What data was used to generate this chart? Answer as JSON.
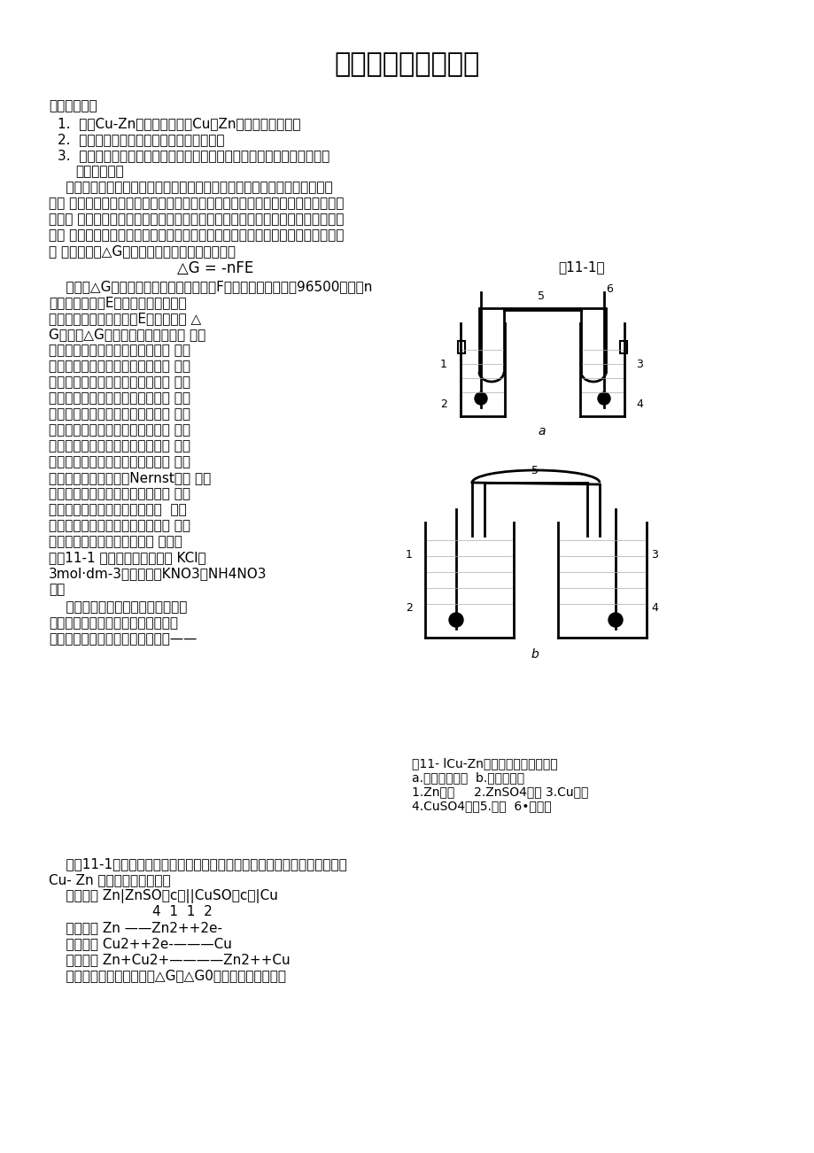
{
  "title": "原电池电动势的测定",
  "bg_color": "#ffffff",
  "text_color": "#000000",
  "title_fontsize": 22,
  "body_fontsize": 11,
  "para1_lines": [
    "    电池由正、负两极组成，在放电过程中，正极（阴极）发生还原反应，负极",
    "（阳 极）发生氧化反应，电池内部可能发生其他反应（如离子迁移等），电池反应",
    "是电池 中所有反应的总和。电池除可以用来作为电源外，还可用来研究构成电池的",
    "化学 反应的热力学性质。从化学热力学知道，在恒温、恒压、可逆条件下，系统的",
    "吉 布斯函数变△G与电池的电动势存在下列关系："
  ],
  "formula_left": "△G = -nFE",
  "formula_right": "（11-1）",
  "lines_after_formula": [
    "    式中：△G是电池反应的吉布斯函数变，F是法拉第常数（等于96500库仑，n",
    "是得失电子数，E是电池的电动势。可"
  ],
  "left_col_lines": [
    "见，只要能测出该电池的E，便可求出 △",
    "G，通过△G又可求出其他热力学函 数，",
    "但必须注意，只有恒温、恒压、可 逆条",
    "件下，上式才能成立。这就首先要 求电",
    "池反应本身是可逆的，即要求电极 反应",
    "必须可逆，且不存在任何不可逆的 液体",
    "接界电势。另外，电池还必须在可 逆的",
    "情况下工作，即放电和充电过程都 必须",
    "在准平衡状态下进行，此时只有无 限小",
    "的电流通过电池。只有这样，测得 的电",
    "动势才能与理论值（用Nernst方程 计算",
    "值）相吻合。用电化学方法研究化 学反",
    "应的热力学性质时所设计的电池  应尽",
    "量避免出现液体接界电势，在精确 度要",
    "求不高的测量中，常用盐桥来 消除。",
    "如图11-1 所示，常用的盐桥有 KCl（",
    "3mol·dm-3或饱和），KNO3，NH4NO3",
    "等。"
  ],
  "cont_lines": [
    "    在进行电池电动势测量时，为了使",
    "电池反应在接近热力学可逆条件下进",
    "行，不能用伏特表，而要用位差计——"
  ],
  "full_lines": [
    "    由（11-1）式可推导出电池电动势及电极电势与浓度的关系表达式，下面以",
    "Cu- Zn 电池为例进行分析。",
    "    电池组成 Zn|ZnSO（c）||CuSO（c）|Cu",
    "                        4  1  1  2",
    "    负极反应 Zn ——Zn2++2e-",
    "    正极反应 Cu2++2e-———Cu",
    "    电池反应 Zn+Cu2+————Zn2++Cu",
    "    由热力学第二定律可知，△G与△G0的关系，可表示为："
  ],
  "fig_captions": [
    "图11- lCu-Zn电池及常用盐桥示意图",
    "a.电极管式电池  b.烧杯式电池",
    "1.Zn电极     2.ZnSO4溶液 3.Cu电极",
    "4.CuSO4溶液5.盐桥  6•电极管"
  ],
  "section1": "一、实验目的",
  "item1": "1.  测定Cu-Zn电池的电动势和Cu、Zn电极的电极电势。",
  "item2": "2.  了解可逆电池、可逆电极、盐桥等概念。",
  "item3": "3.  学会一些电极的制备和处理方法，掌握电位差计的测量原理和操作方法",
  "section2": "二、实验原理"
}
